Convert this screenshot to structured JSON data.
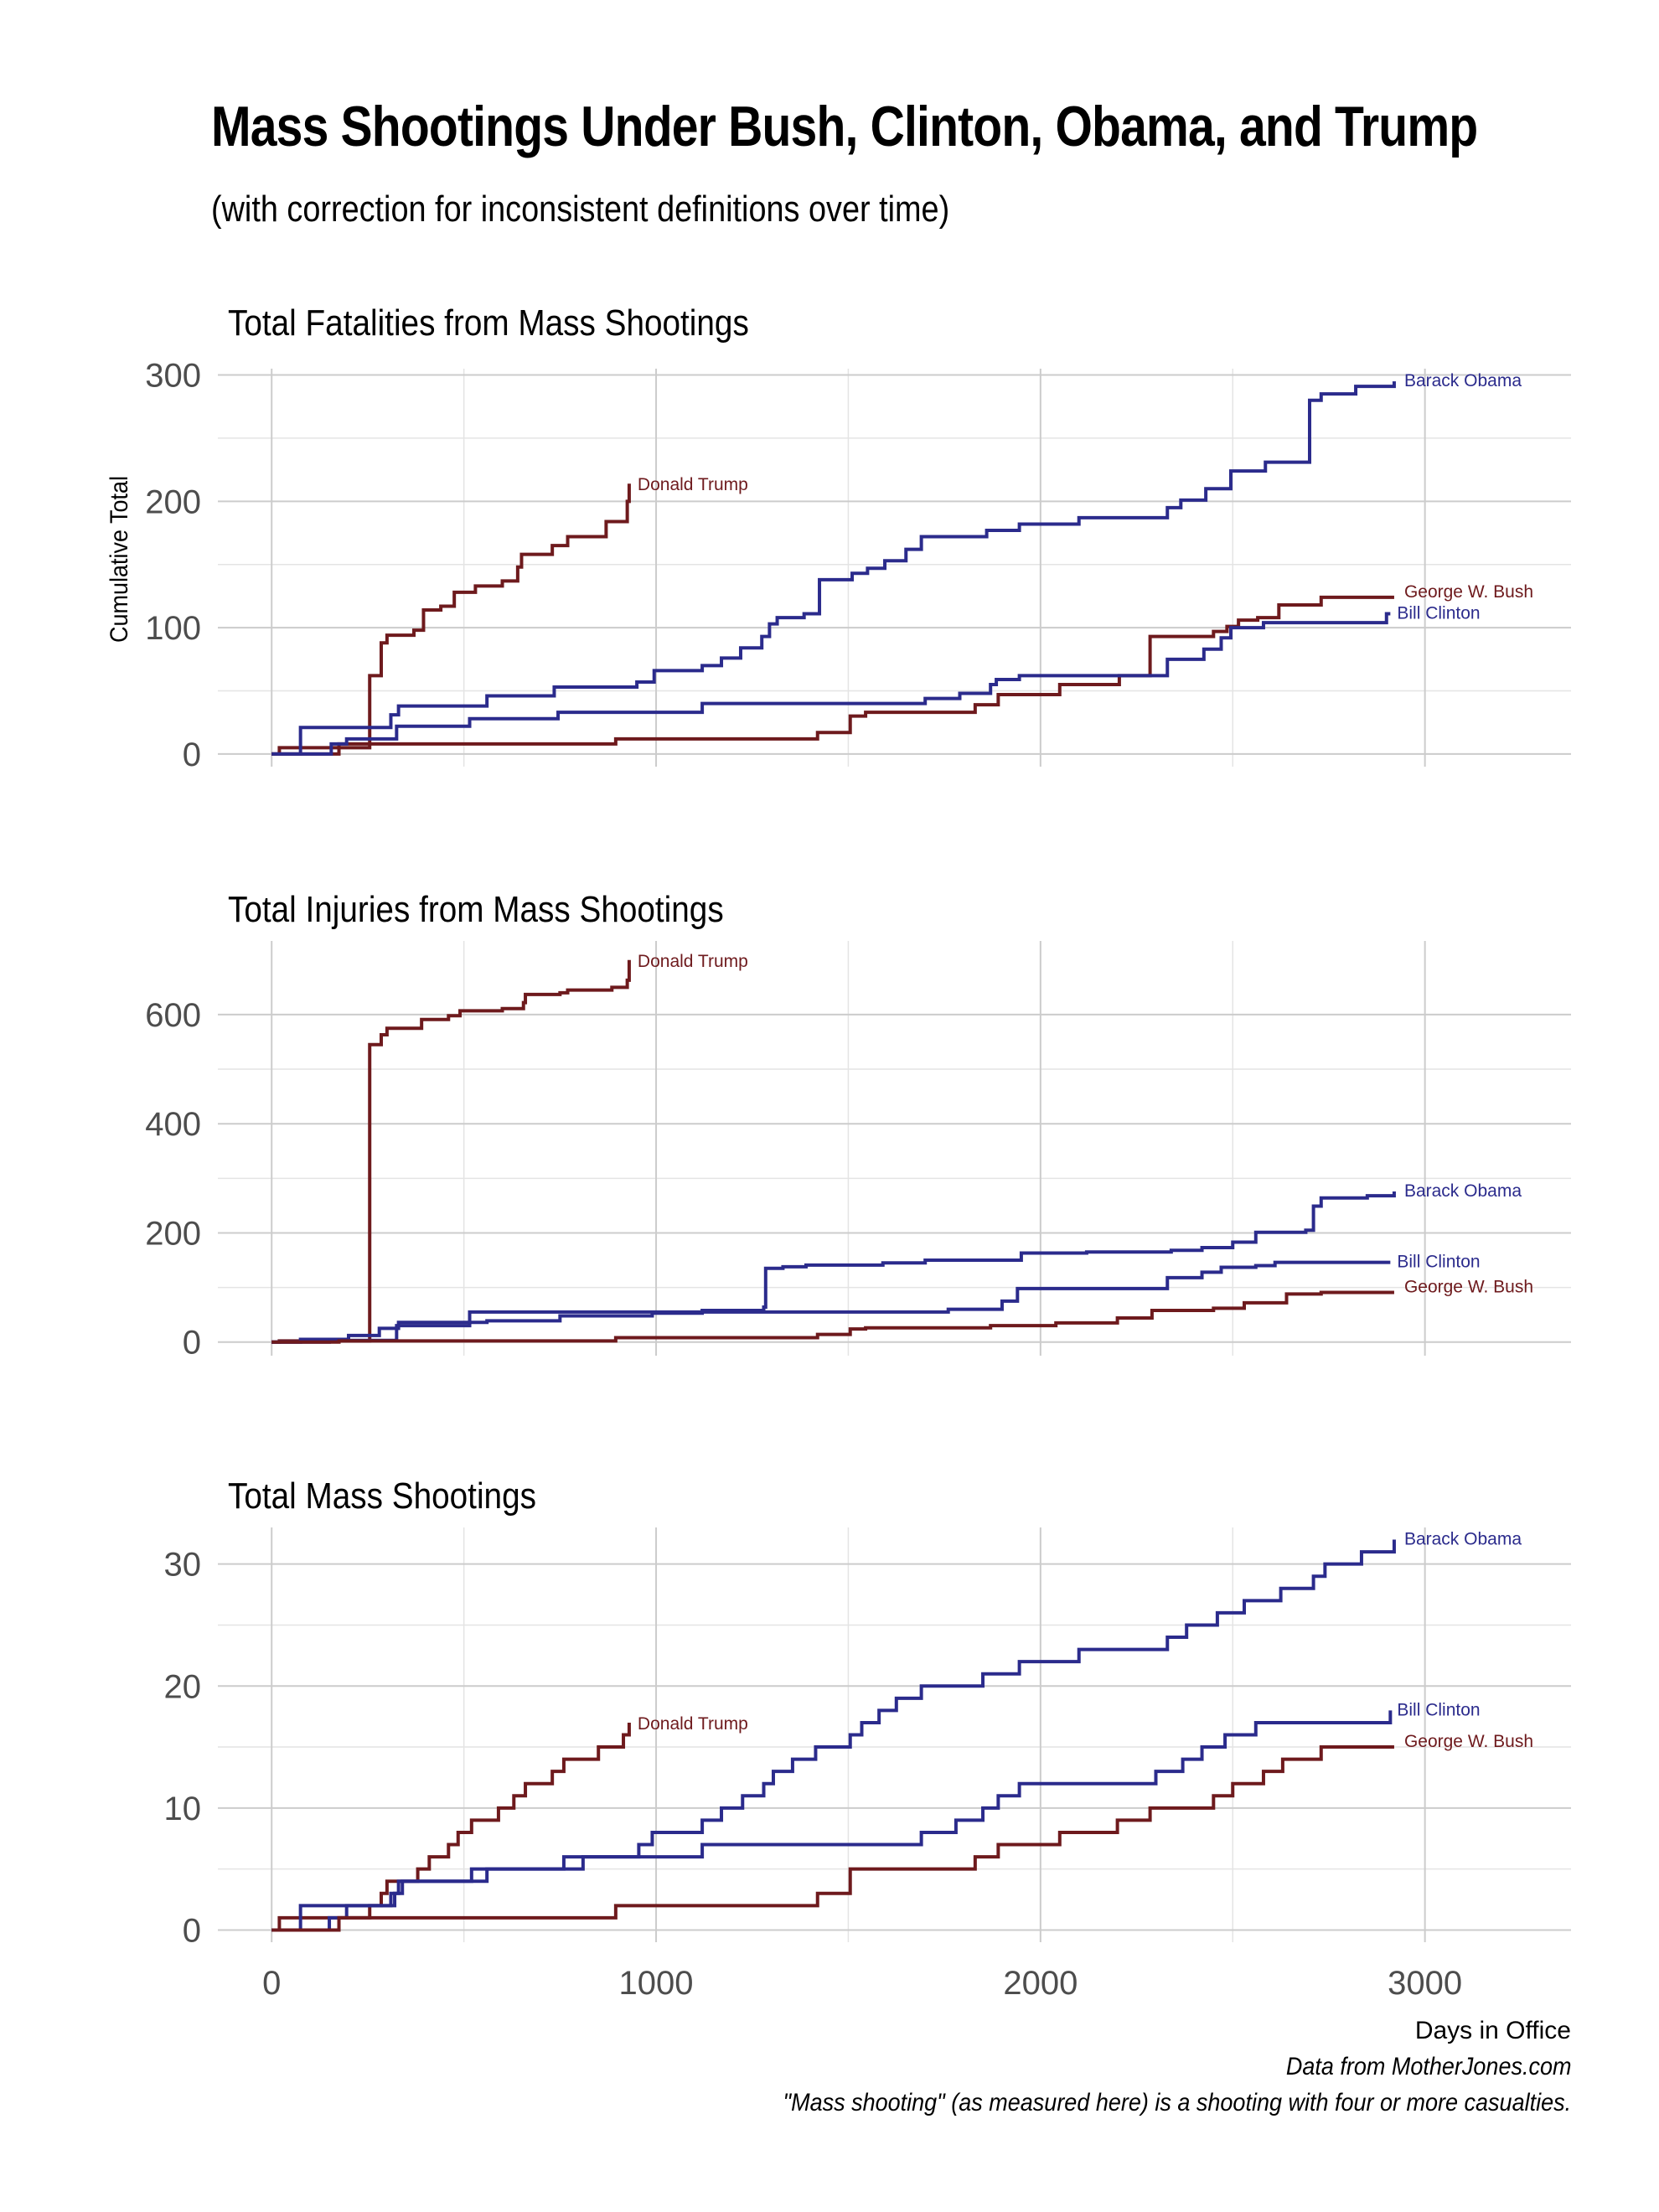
{
  "title": "Mass Shootings Under Bush, Clinton, Obama, and Trump",
  "subtitle": "(with correction for inconsistent definitions over time)",
  "caption": [
    "Data from MotherJones.com",
    "\"Mass shooting\" (as measured here) is a shooting with four or more casualties."
  ],
  "colors": {
    "democrat": "#2b2b8c",
    "republican": "#6e1a1d",
    "grid": "#cccccc",
    "grid_minor": "#e4e4e4"
  },
  "chart_data": [
    {
      "type": "line",
      "step": true,
      "title": "Total Fatalities from Mass Shootings",
      "ylabel": "Cumulative Total",
      "xlabel": "",
      "xlim": [
        -140,
        3380
      ],
      "ylim": [
        -10,
        305
      ],
      "yticks": [
        0,
        100,
        200,
        300
      ],
      "xticks": [
        0,
        1000,
        2000,
        3000
      ],
      "series": [
        {
          "name": "Donald Trump",
          "party": "republican",
          "points": [
            [
              0,
              0
            ],
            [
              20,
              5
            ],
            [
              255,
              62
            ],
            [
              285,
              88
            ],
            [
              300,
              94
            ],
            [
              370,
              98
            ],
            [
              395,
              114
            ],
            [
              440,
              117
            ],
            [
              475,
              128
            ],
            [
              530,
              133
            ],
            [
              600,
              137
            ],
            [
              640,
              148
            ],
            [
              650,
              158
            ],
            [
              730,
              165
            ],
            [
              770,
              172
            ],
            [
              870,
              184
            ],
            [
              925,
              200
            ],
            [
              930,
              214
            ]
          ]
        },
        {
          "name": "Barack Obama",
          "party": "democrat",
          "points": [
            [
              0,
              0
            ],
            [
              75,
              21
            ],
            [
              310,
              31
            ],
            [
              330,
              38
            ],
            [
              560,
              46
            ],
            [
              735,
              53
            ],
            [
              950,
              57
            ],
            [
              995,
              66
            ],
            [
              1120,
              70
            ],
            [
              1170,
              76
            ],
            [
              1220,
              84
            ],
            [
              1275,
              93
            ],
            [
              1295,
              103
            ],
            [
              1315,
              108
            ],
            [
              1385,
              111
            ],
            [
              1425,
              138
            ],
            [
              1510,
              143
            ],
            [
              1550,
              147
            ],
            [
              1595,
              153
            ],
            [
              1650,
              162
            ],
            [
              1690,
              172
            ],
            [
              1860,
              177
            ],
            [
              1945,
              182
            ],
            [
              2100,
              187
            ],
            [
              2330,
              195
            ],
            [
              2365,
              201
            ],
            [
              2430,
              210
            ],
            [
              2495,
              224
            ],
            [
              2585,
              231
            ],
            [
              2700,
              280
            ],
            [
              2730,
              285
            ],
            [
              2820,
              291
            ],
            [
              2920,
              295
            ]
          ]
        },
        {
          "name": "George W. Bush",
          "party": "republican",
          "points": [
            [
              0,
              0
            ],
            [
              175,
              8
            ],
            [
              895,
              12
            ],
            [
              1420,
              17
            ],
            [
              1505,
              30
            ],
            [
              1545,
              33
            ],
            [
              1830,
              39
            ],
            [
              1890,
              47
            ],
            [
              2050,
              55
            ],
            [
              2205,
              62
            ],
            [
              2285,
              93
            ],
            [
              2450,
              97
            ],
            [
              2485,
              101
            ],
            [
              2515,
              106
            ],
            [
              2565,
              108
            ],
            [
              2620,
              118
            ],
            [
              2730,
              124
            ],
            [
              2920,
              124
            ]
          ]
        },
        {
          "name": "Bill Clinton",
          "party": "democrat",
          "points": [
            [
              0,
              0
            ],
            [
              155,
              8
            ],
            [
              195,
              12
            ],
            [
              325,
              22
            ],
            [
              515,
              28
            ],
            [
              745,
              33
            ],
            [
              1120,
              40
            ],
            [
              1700,
              44
            ],
            [
              1790,
              48
            ],
            [
              1870,
              55
            ],
            [
              1885,
              59
            ],
            [
              1945,
              62
            ],
            [
              2330,
              75
            ],
            [
              2425,
              83
            ],
            [
              2470,
              92
            ],
            [
              2495,
              100
            ],
            [
              2580,
              104
            ],
            [
              2900,
              111
            ],
            [
              2910,
              111
            ]
          ]
        }
      ]
    },
    {
      "type": "line",
      "step": true,
      "title": "Total Injuries from Mass Shootings",
      "ylabel": "",
      "xlabel": "",
      "xlim": [
        -140,
        3380
      ],
      "ylim": [
        -25,
        735
      ],
      "yticks": [
        0,
        200,
        400,
        600
      ],
      "xticks": [
        0,
        1000,
        2000,
        3000
      ],
      "series": [
        {
          "name": "Donald Trump",
          "party": "republican",
          "points": [
            [
              0,
              0
            ],
            [
              20,
              2
            ],
            [
              255,
              545
            ],
            [
              285,
              563
            ],
            [
              300,
              575
            ],
            [
              390,
              591
            ],
            [
              460,
              598
            ],
            [
              490,
              607
            ],
            [
              600,
              611
            ],
            [
              655,
              622
            ],
            [
              660,
              637
            ],
            [
              750,
              640
            ],
            [
              770,
              645
            ],
            [
              885,
              650
            ],
            [
              925,
              663
            ],
            [
              930,
              700
            ]
          ]
        },
        {
          "name": "Barack Obama",
          "party": "democrat",
          "points": [
            [
              0,
              0
            ],
            [
              75,
              5
            ],
            [
              200,
              12
            ],
            [
              280,
              25
            ],
            [
              330,
              36
            ],
            [
              560,
              39
            ],
            [
              750,
              48
            ],
            [
              990,
              53
            ],
            [
              1120,
              58
            ],
            [
              1280,
              64
            ],
            [
              1285,
              135
            ],
            [
              1330,
              138
            ],
            [
              1390,
              141
            ],
            [
              1590,
              145
            ],
            [
              1700,
              150
            ],
            [
              1950,
              163
            ],
            [
              2120,
              165
            ],
            [
              2340,
              168
            ],
            [
              2420,
              173
            ],
            [
              2500,
              183
            ],
            [
              2560,
              201
            ],
            [
              2690,
              205
            ],
            [
              2710,
              249
            ],
            [
              2730,
              264
            ],
            [
              2850,
              268
            ],
            [
              2920,
              276
            ]
          ]
        },
        {
          "name": "Bill Clinton",
          "party": "democrat",
          "points": [
            [
              0,
              0
            ],
            [
              150,
              3
            ],
            [
              325,
              30
            ],
            [
              515,
              55
            ],
            [
              1120,
              55
            ],
            [
              1760,
              60
            ],
            [
              1900,
              75
            ],
            [
              1940,
              98
            ],
            [
              2290,
              98
            ],
            [
              2330,
              118
            ],
            [
              2420,
              128
            ],
            [
              2470,
              137
            ],
            [
              2560,
              140
            ],
            [
              2610,
              146
            ],
            [
              2910,
              146
            ]
          ]
        },
        {
          "name": "George W. Bush",
          "party": "republican",
          "points": [
            [
              0,
              0
            ],
            [
              175,
              2
            ],
            [
              895,
              8
            ],
            [
              1420,
              14
            ],
            [
              1505,
              24
            ],
            [
              1545,
              26
            ],
            [
              1870,
              30
            ],
            [
              1960,
              30
            ],
            [
              2040,
              35
            ],
            [
              2200,
              44
            ],
            [
              2290,
              58
            ],
            [
              2450,
              62
            ],
            [
              2530,
              72
            ],
            [
              2640,
              88
            ],
            [
              2730,
              91
            ],
            [
              2920,
              91
            ]
          ]
        }
      ]
    },
    {
      "type": "line",
      "step": true,
      "title": "Total Mass Shootings",
      "ylabel": "",
      "xlabel": "Days in Office",
      "xlim": [
        -140,
        3380
      ],
      "ylim": [
        -1,
        33
      ],
      "yticks": [
        0,
        10,
        20,
        30
      ],
      "xticks": [
        0,
        1000,
        2000,
        3000
      ],
      "series": [
        {
          "name": "Donald Trump",
          "party": "republican",
          "points": [
            [
              0,
              0
            ],
            [
              20,
              1
            ],
            [
              255,
              2
            ],
            [
              285,
              3
            ],
            [
              300,
              4
            ],
            [
              380,
              5
            ],
            [
              410,
              6
            ],
            [
              460,
              7
            ],
            [
              485,
              8
            ],
            [
              520,
              9
            ],
            [
              590,
              10
            ],
            [
              630,
              11
            ],
            [
              660,
              12
            ],
            [
              730,
              13
            ],
            [
              760,
              14
            ],
            [
              850,
              15
            ],
            [
              915,
              16
            ],
            [
              930,
              17
            ]
          ]
        },
        {
          "name": "Barack Obama",
          "party": "democrat",
          "points": [
            [
              0,
              0
            ],
            [
              75,
              2
            ],
            [
              310,
              3
            ],
            [
              330,
              4
            ],
            [
              560,
              5
            ],
            [
              760,
              6
            ],
            [
              955,
              7
            ],
            [
              990,
              8
            ],
            [
              1120,
              9
            ],
            [
              1170,
              10
            ],
            [
              1225,
              11
            ],
            [
              1280,
              12
            ],
            [
              1305,
              13
            ],
            [
              1355,
              14
            ],
            [
              1415,
              15
            ],
            [
              1505,
              16
            ],
            [
              1535,
              17
            ],
            [
              1580,
              18
            ],
            [
              1625,
              19
            ],
            [
              1690,
              20
            ],
            [
              1850,
              21
            ],
            [
              1945,
              22
            ],
            [
              2100,
              23
            ],
            [
              2330,
              24
            ],
            [
              2380,
              25
            ],
            [
              2460,
              26
            ],
            [
              2530,
              27
            ],
            [
              2625,
              28
            ],
            [
              2710,
              29
            ],
            [
              2740,
              30
            ],
            [
              2835,
              31
            ],
            [
              2920,
              32
            ]
          ]
        },
        {
          "name": "Bill Clinton",
          "party": "democrat",
          "points": [
            [
              0,
              0
            ],
            [
              150,
              1
            ],
            [
              195,
              2
            ],
            [
              320,
              3
            ],
            [
              340,
              4
            ],
            [
              520,
              5
            ],
            [
              810,
              6
            ],
            [
              1120,
              7
            ],
            [
              1690,
              8
            ],
            [
              1780,
              9
            ],
            [
              1850,
              10
            ],
            [
              1890,
              11
            ],
            [
              1945,
              12
            ],
            [
              2300,
              13
            ],
            [
              2370,
              14
            ],
            [
              2420,
              15
            ],
            [
              2480,
              16
            ],
            [
              2560,
              17
            ],
            [
              2910,
              18
            ]
          ]
        },
        {
          "name": "George W. Bush",
          "party": "republican",
          "points": [
            [
              0,
              0
            ],
            [
              175,
              1
            ],
            [
              895,
              2
            ],
            [
              1420,
              3
            ],
            [
              1505,
              5
            ],
            [
              1830,
              6
            ],
            [
              1890,
              7
            ],
            [
              2050,
              8
            ],
            [
              2200,
              9
            ],
            [
              2285,
              10
            ],
            [
              2450,
              11
            ],
            [
              2500,
              12
            ],
            [
              2580,
              13
            ],
            [
              2630,
              14
            ],
            [
              2730,
              15
            ],
            [
              2920,
              15
            ]
          ]
        }
      ]
    }
  ]
}
